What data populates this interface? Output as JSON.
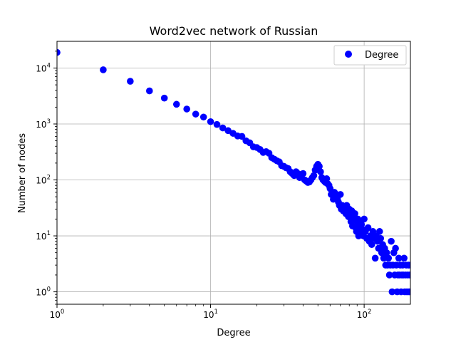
{
  "chart_data": {
    "type": "scatter",
    "title": "Word2vec network of Russian",
    "xlabel": "Degree",
    "ylabel": "Number of nodes",
    "xscale": "log",
    "yscale": "log",
    "xlim": [
      1,
      200
    ],
    "ylim": [
      0.6,
      30000
    ],
    "grid": true,
    "legend_position": "top-right",
    "marker_color": "#0000ff",
    "x_ticks": [
      {
        "base": "10",
        "exp": "0"
      },
      {
        "base": "10",
        "exp": "1"
      },
      {
        "base": "10",
        "exp": "2"
      }
    ],
    "y_ticks": [
      {
        "base": "10",
        "exp": "0"
      },
      {
        "base": "10",
        "exp": "1"
      },
      {
        "base": "10",
        "exp": "2"
      },
      {
        "base": "10",
        "exp": "3"
      },
      {
        "base": "10",
        "exp": "4"
      }
    ],
    "series": [
      {
        "name": "Degree",
        "points": [
          [
            1,
            19000
          ],
          [
            2,
            9300
          ],
          [
            3,
            5800
          ],
          [
            4,
            3900
          ],
          [
            5,
            2900
          ],
          [
            6,
            2250
          ],
          [
            7,
            1850
          ],
          [
            8,
            1500
          ],
          [
            9,
            1330
          ],
          [
            10,
            1100
          ],
          [
            11,
            980
          ],
          [
            12,
            850
          ],
          [
            13,
            760
          ],
          [
            14,
            680
          ],
          [
            15,
            610
          ],
          [
            16,
            600
          ],
          [
            17,
            500
          ],
          [
            18,
            460
          ],
          [
            19,
            390
          ],
          [
            20,
            380
          ],
          [
            21,
            350
          ],
          [
            22,
            310
          ],
          [
            23,
            320
          ],
          [
            24,
            300
          ],
          [
            25,
            250
          ],
          [
            26,
            235
          ],
          [
            27,
            220
          ],
          [
            28,
            210
          ],
          [
            29,
            180
          ],
          [
            30,
            175
          ],
          [
            31,
            165
          ],
          [
            32,
            160
          ],
          [
            33,
            140
          ],
          [
            34,
            130
          ],
          [
            35,
            120
          ],
          [
            36,
            140
          ],
          [
            37,
            130
          ],
          [
            38,
            110
          ],
          [
            39,
            120
          ],
          [
            40,
            130
          ],
          [
            41,
            100
          ],
          [
            42,
            95
          ],
          [
            43,
            90
          ],
          [
            44,
            92
          ],
          [
            45,
            100
          ],
          [
            46,
            110
          ],
          [
            47,
            120
          ],
          [
            48,
            150
          ],
          [
            49,
            175
          ],
          [
            50,
            190
          ],
          [
            51,
            175
          ],
          [
            52,
            140
          ],
          [
            53,
            110
          ],
          [
            54,
            100
          ],
          [
            55,
            95
          ],
          [
            56,
            90
          ],
          [
            57,
            105
          ],
          [
            58,
            85
          ],
          [
            59,
            80
          ],
          [
            60,
            70
          ],
          [
            61,
            55
          ],
          [
            62,
            60
          ],
          [
            63,
            45
          ],
          [
            64,
            60
          ],
          [
            65,
            50
          ],
          [
            66,
            55
          ],
          [
            67,
            45
          ],
          [
            68,
            40
          ],
          [
            69,
            35
          ],
          [
            70,
            55
          ],
          [
            71,
            30
          ],
          [
            72,
            35
          ],
          [
            73,
            28
          ],
          [
            74,
            32
          ],
          [
            75,
            30
          ],
          [
            76,
            25
          ],
          [
            77,
            35
          ],
          [
            78,
            28
          ],
          [
            79,
            22
          ],
          [
            80,
            30
          ],
          [
            81,
            25
          ],
          [
            82,
            18
          ],
          [
            83,
            28
          ],
          [
            84,
            15
          ],
          [
            85,
            22
          ],
          [
            86,
            20
          ],
          [
            87,
            25
          ],
          [
            88,
            14
          ],
          [
            89,
            12
          ],
          [
            90,
            18
          ],
          [
            91,
            20
          ],
          [
            92,
            10
          ],
          [
            93,
            15
          ],
          [
            94,
            12
          ],
          [
            95,
            18
          ],
          [
            96,
            16
          ],
          [
            97,
            11
          ],
          [
            98,
            13
          ],
          [
            99,
            10
          ],
          [
            100,
            20
          ],
          [
            102,
            12
          ],
          [
            104,
            9
          ],
          [
            106,
            14
          ],
          [
            108,
            8
          ],
          [
            110,
            10
          ],
          [
            112,
            7
          ],
          [
            114,
            12
          ],
          [
            116,
            9
          ],
          [
            118,
            4
          ],
          [
            120,
            10
          ],
          [
            122,
            8
          ],
          [
            124,
            6
          ],
          [
            126,
            12
          ],
          [
            128,
            9
          ],
          [
            130,
            5
          ],
          [
            132,
            7
          ],
          [
            134,
            4
          ],
          [
            136,
            6
          ],
          [
            138,
            3
          ],
          [
            140,
            5
          ],
          [
            142,
            3
          ],
          [
            144,
            4
          ],
          [
            146,
            2
          ],
          [
            148,
            3
          ],
          [
            150,
            8
          ],
          [
            152,
            1
          ],
          [
            154,
            3
          ],
          [
            156,
            5
          ],
          [
            158,
            2
          ],
          [
            160,
            6
          ],
          [
            162,
            3
          ],
          [
            164,
            1
          ],
          [
            166,
            2
          ],
          [
            168,
            4
          ],
          [
            170,
            2
          ],
          [
            172,
            3
          ],
          [
            174,
            1
          ],
          [
            176,
            2
          ],
          [
            178,
            3
          ],
          [
            180,
            2
          ],
          [
            182,
            4
          ],
          [
            184,
            1
          ],
          [
            186,
            2
          ],
          [
            188,
            3
          ],
          [
            190,
            1
          ],
          [
            192,
            2
          ],
          [
            194,
            3
          ],
          [
            196,
            1
          ],
          [
            198,
            2
          ],
          [
            200,
            3
          ]
        ]
      }
    ]
  }
}
